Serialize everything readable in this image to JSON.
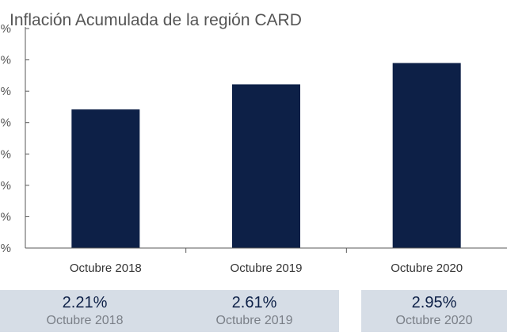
{
  "chart_data": {
    "type": "bar",
    "title": "Inflación Acumulada de la región CARD",
    "categories": [
      "Octubre 2018",
      "Octubre 2019",
      "Octubre 2020"
    ],
    "values": [
      2.21,
      2.61,
      2.95
    ],
    "ylim": [
      0,
      3.5
    ],
    "yticks": [
      0,
      0.5,
      1.0,
      1.5,
      2.0,
      2.5,
      3.0,
      3.5
    ],
    "ytick_labels": [
      "%",
      "%",
      "%",
      "%",
      "%",
      "%",
      "%",
      "%"
    ],
    "xlabel": "",
    "ylabel": "",
    "bar_color": "#0d2047",
    "grid": false,
    "legend": false
  },
  "summary_cards": [
    {
      "value": "2.21%",
      "label": "Octubre 2018"
    },
    {
      "value": "2.61%",
      "label": "Octubre 2019"
    },
    {
      "value": "2.95%",
      "label": "Octubre 2020"
    }
  ],
  "colors": {
    "card_background": "#d6dde6",
    "card_value": "#0d2047",
    "card_label": "#7a7f87",
    "axis": "#595959"
  }
}
